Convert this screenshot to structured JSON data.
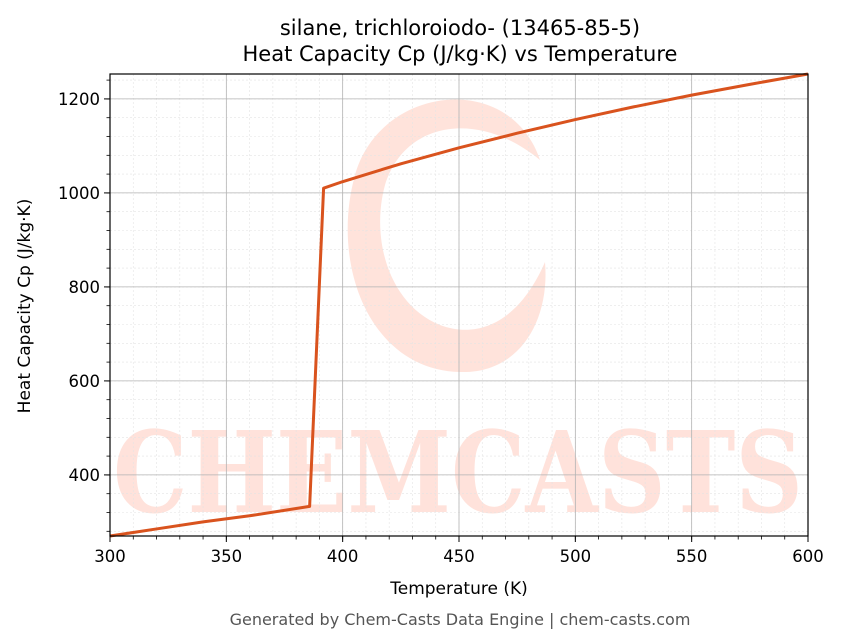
{
  "chart_data": {
    "type": "line",
    "title_line1": "silane, trichloroiodo- (13465-85-5)",
    "title_line2": "Heat Capacity Cp (J/kg·K) vs Temperature",
    "xlabel": "Temperature (K)",
    "ylabel": "Heat Capacity Cp (J/kg·K)",
    "xlim": [
      300,
      600
    ],
    "ylim": [
      270,
      1253
    ],
    "xticks": [
      300,
      350,
      400,
      450,
      500,
      550,
      600
    ],
    "yticks": [
      400,
      600,
      800,
      1000,
      1200
    ],
    "grid": true,
    "series": [
      {
        "color": "#d9531e",
        "x": [
          300,
          320,
          340,
          360,
          385.8,
          391.8,
          400,
          425,
          450,
          475,
          500,
          525,
          550,
          575,
          600
        ],
        "y": [
          270,
          285,
          300,
          313,
          333,
          1010,
          1024,
          1062,
          1096,
          1127,
          1156,
          1183,
          1208,
          1231,
          1253
        ]
      }
    ]
  },
  "watermark": {
    "text": "CHEMCASTS",
    "color": "#ffd9cf"
  },
  "footer": "Generated by Chem-Casts Data Engine | chem-casts.com"
}
